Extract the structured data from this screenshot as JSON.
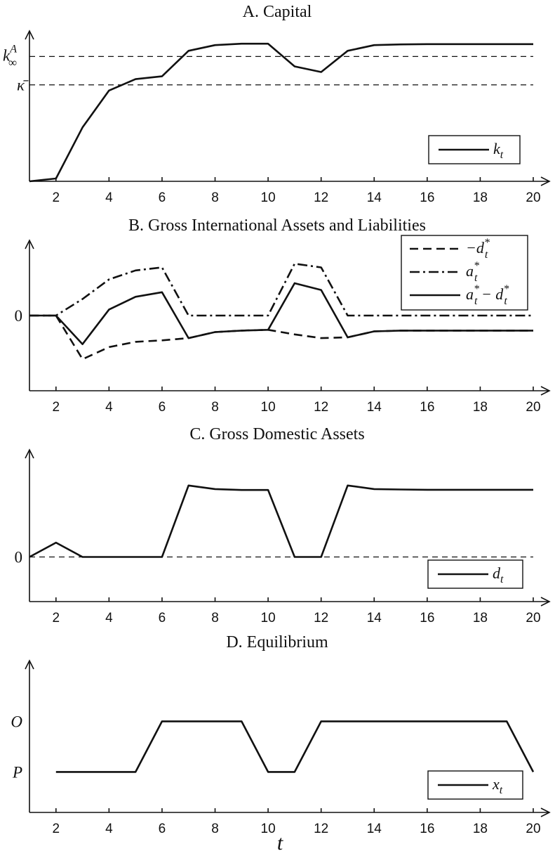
{
  "chart_data": [
    {
      "type": "line",
      "title": "A. Capital",
      "x": [
        1,
        2,
        3,
        4,
        5,
        6,
        7,
        8,
        9,
        10,
        11,
        12,
        13,
        14,
        15,
        16,
        17,
        18,
        20
      ],
      "xticks": [
        "2",
        "4",
        "6",
        "8",
        "10",
        "12",
        "14",
        "16",
        "18",
        "20"
      ],
      "xlim": [
        1,
        20
      ],
      "ylim": [
        0,
        1.06
      ],
      "ytick_labels": [
        {
          "label": "k∞A",
          "y": 0.88,
          "style": "k-inf"
        },
        {
          "label": "κ̄",
          "y": 0.68,
          "style": "kappa"
        }
      ],
      "reference_lines": [
        {
          "y": 0.88,
          "style": "dashed"
        },
        {
          "y": 0.68,
          "style": "dashed"
        }
      ],
      "series": [
        {
          "name": "kt",
          "style": "solid",
          "values": [
            0,
            0.02,
            0.38,
            0.64,
            0.72,
            0.74,
            0.92,
            0.96,
            0.97,
            0.97,
            0.81,
            0.77,
            0.92,
            0.96,
            0.965,
            0.967,
            0.967,
            0.967,
            0.967
          ]
        }
      ],
      "legend": {
        "position": "lower-right"
      }
    },
    {
      "type": "line",
      "title": "B. Gross International Assets and Liabilities",
      "x": [
        1,
        2,
        3,
        4,
        5,
        6,
        7,
        8,
        9,
        10,
        11,
        12,
        13,
        14,
        15,
        16,
        17,
        18,
        20
      ],
      "xticks": [
        "2",
        "4",
        "6",
        "8",
        "10",
        "12",
        "14",
        "16",
        "18",
        "20"
      ],
      "xlim": [
        1,
        20
      ],
      "ylim": [
        -1.0,
        1.0
      ],
      "ytick_labels": [
        {
          "label": "0",
          "y": 0
        }
      ],
      "series": [
        {
          "name": "−dt*",
          "style": "dashed",
          "values": [
            0,
            0,
            -0.58,
            -0.42,
            -0.35,
            -0.33,
            -0.3,
            -0.22,
            -0.2,
            -0.19,
            -0.25,
            -0.3,
            -0.29,
            -0.21,
            -0.2,
            -0.2,
            -0.2,
            -0.2,
            -0.2
          ]
        },
        {
          "name": "at*",
          "style": "dashdot",
          "values": [
            0,
            0,
            0.22,
            0.48,
            0.6,
            0.64,
            0,
            0,
            0,
            0,
            0.69,
            0.64,
            0,
            0,
            0,
            0,
            0,
            0,
            0
          ]
        },
        {
          "name": "at* − dt*",
          "style": "solid",
          "values": [
            0,
            0,
            -0.38,
            0.08,
            0.25,
            0.31,
            -0.3,
            -0.22,
            -0.2,
            -0.19,
            0.43,
            0.34,
            -0.29,
            -0.21,
            -0.2,
            -0.2,
            -0.2,
            -0.2,
            -0.2
          ]
        }
      ],
      "legend": {
        "position": "top-right"
      }
    },
    {
      "type": "line",
      "title": "C. Gross Domestic Assets",
      "x": [
        1,
        2,
        3,
        4,
        5,
        6,
        7,
        8,
        9,
        10,
        11,
        12,
        13,
        14,
        15,
        16,
        17,
        18,
        20
      ],
      "xticks": [
        "2",
        "4",
        "6",
        "8",
        "10",
        "12",
        "14",
        "16",
        "18",
        "20"
      ],
      "xlim": [
        1,
        20
      ],
      "ylim": [
        -0.5,
        1.2
      ],
      "ytick_labels": [
        {
          "label": "0",
          "y": 0
        }
      ],
      "reference_lines": [
        {
          "y": 0,
          "style": "dashed"
        }
      ],
      "series": [
        {
          "name": "dt",
          "style": "solid",
          "values": [
            0,
            0.16,
            0,
            0,
            0,
            0,
            0.8,
            0.76,
            0.75,
            0.75,
            0,
            0,
            0.8,
            0.76,
            0.755,
            0.752,
            0.752,
            0.752,
            0.752
          ]
        }
      ],
      "legend": {
        "position": "lower-right"
      }
    },
    {
      "type": "line",
      "title": "D. Equilibrium",
      "x": [
        2,
        3,
        4,
        5,
        6,
        7,
        8,
        9,
        10,
        11,
        12,
        13,
        14,
        15,
        16,
        17,
        18,
        19,
        20
      ],
      "xticks": [
        "2",
        "4",
        "6",
        "8",
        "10",
        "12",
        "14",
        "16",
        "18",
        "20"
      ],
      "xlim": [
        1,
        20
      ],
      "ylim": [
        -0.8,
        2.2
      ],
      "ytick_labels": [
        {
          "label": "O",
          "y": 1
        },
        {
          "label": "P",
          "y": 0
        }
      ],
      "series": [
        {
          "name": "xt",
          "style": "solid",
          "values": [
            0,
            0,
            0,
            0,
            1,
            1,
            1,
            1,
            0,
            0,
            1,
            1,
            1,
            1,
            1,
            1,
            1,
            1,
            0
          ]
        }
      ],
      "legend": {
        "position": "lower-right"
      }
    }
  ],
  "xlabel": "t"
}
